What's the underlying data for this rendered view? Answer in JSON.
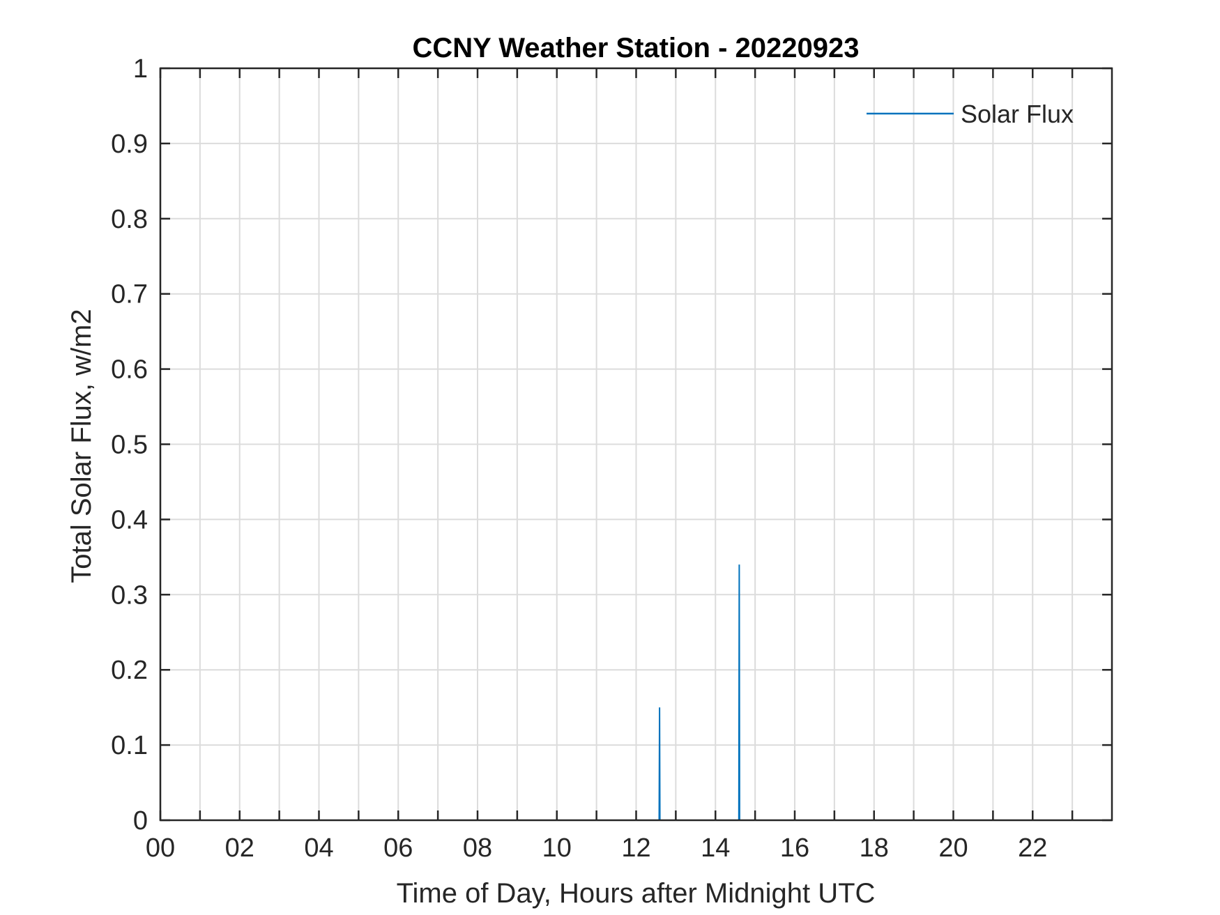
{
  "chart_data": {
    "type": "line",
    "title": "CCNY Weather Station - 20220923",
    "xlabel": "Time of Day, Hours after Midnight UTC",
    "ylabel": "Total Solar Flux, w/m2",
    "xlim": [
      0,
      24
    ],
    "ylim": [
      0,
      1
    ],
    "x_ticks": [
      0,
      2,
      4,
      6,
      8,
      10,
      12,
      14,
      16,
      18,
      20,
      22
    ],
    "x_tick_labels": [
      "00",
      "02",
      "04",
      "06",
      "08",
      "10",
      "12",
      "14",
      "16",
      "18",
      "20",
      "22"
    ],
    "x_minor_ticks": [
      1,
      3,
      5,
      7,
      9,
      11,
      13,
      15,
      17,
      19,
      21,
      23
    ],
    "y_ticks": [
      0,
      0.1,
      0.2,
      0.3,
      0.4,
      0.5,
      0.6,
      0.7,
      0.8,
      0.9,
      1
    ],
    "y_tick_labels": [
      "0",
      "0.1",
      "0.2",
      "0.3",
      "0.4",
      "0.5",
      "0.6",
      "0.7",
      "0.8",
      "0.9",
      "1"
    ],
    "grid": true,
    "legend_position": "top-right",
    "series": [
      {
        "name": "Solar Flux",
        "color": "#0072BD",
        "x": [
          0,
          12.58,
          12.59,
          12.6,
          14.59,
          14.6,
          14.61,
          24
        ],
        "y": [
          0,
          0,
          0.15,
          0,
          0,
          0.34,
          0,
          0
        ]
      }
    ]
  }
}
